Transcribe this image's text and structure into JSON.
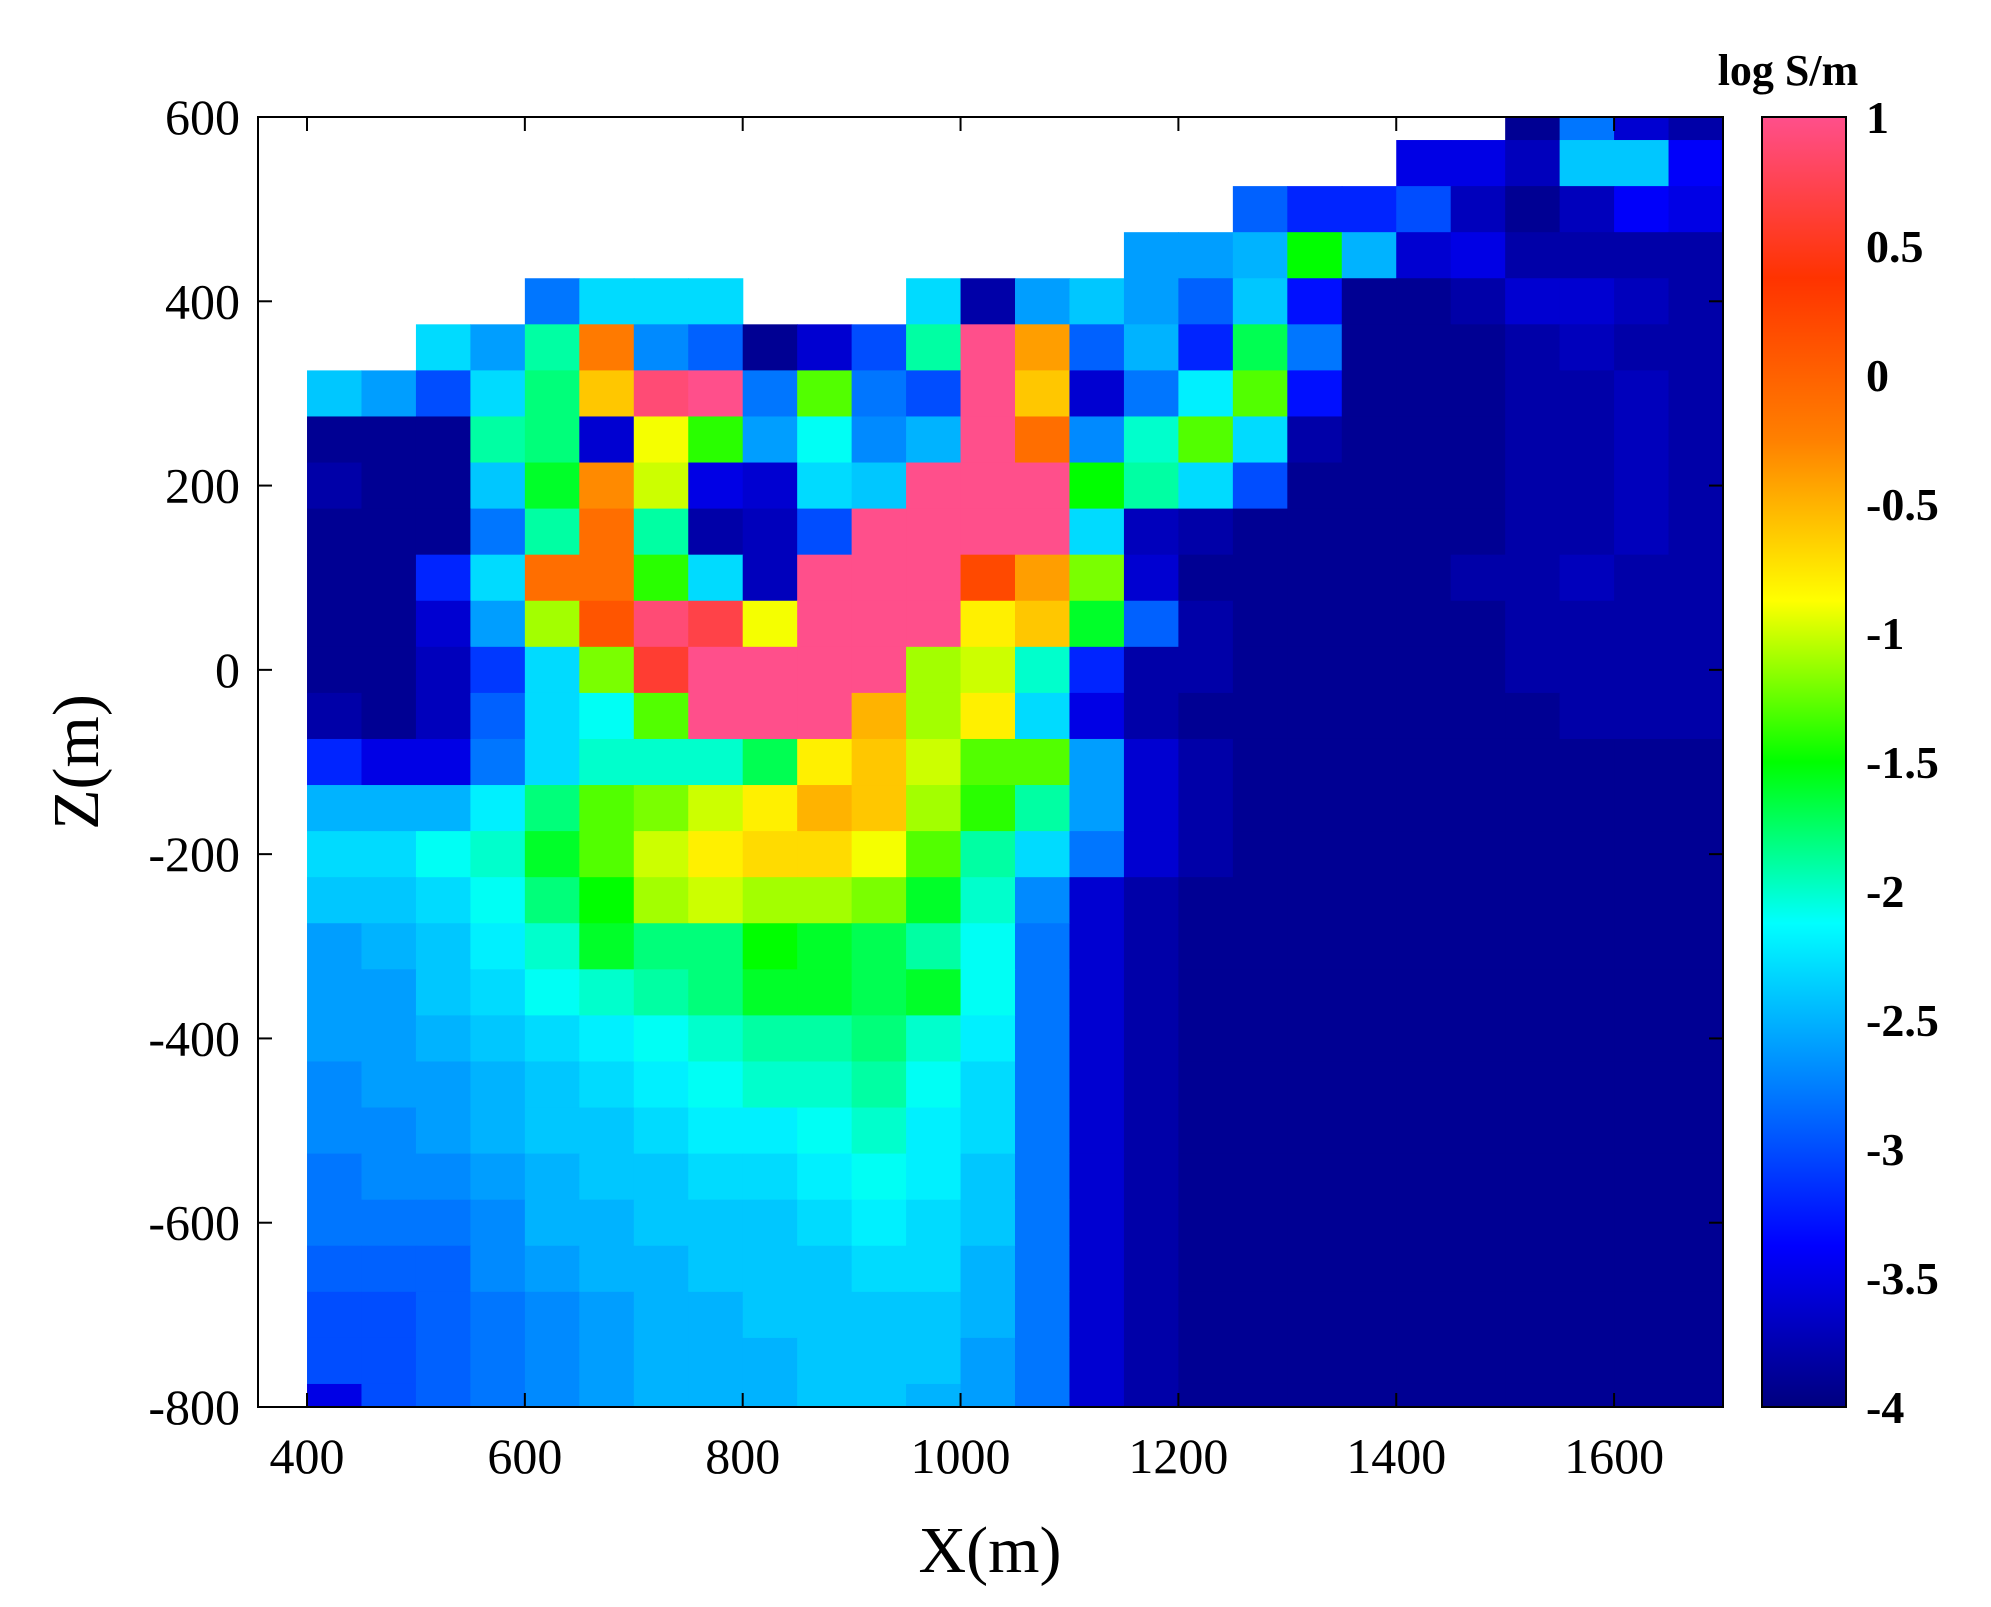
{
  "chart_data": {
    "type": "heatmap",
    "title": "",
    "xlabel": "X(m)",
    "ylabel": "Z(m)",
    "xlim": [
      355,
      1700
    ],
    "ylim": [
      -800,
      600
    ],
    "xticks": [
      400,
      600,
      800,
      1000,
      1200,
      1400,
      1600
    ],
    "yticks": [
      600,
      400,
      200,
      0,
      -200,
      -400,
      -600,
      -800
    ],
    "grid": false,
    "colorbar": {
      "title": "log S/m",
      "range": [
        -4,
        1
      ],
      "ticks": [
        "1",
        "0.5",
        "0",
        "-0.5",
        "-1",
        "-1.5",
        "-2",
        "-2.5",
        "-3",
        "-3.5",
        "-4"
      ],
      "colormap": "jet-like with pink top",
      "colors": [
        "#00007f",
        "#0000ff",
        "#0080ff",
        "#00ffff",
        "#00ff00",
        "#ffff00",
        "#ff8000",
        "#ff3300",
        "#ff4f8b"
      ]
    },
    "cell_x_edges": [
      400,
      450,
      500,
      550,
      600,
      650,
      700,
      750,
      800,
      850,
      900,
      950,
      1000,
      1050,
      1100,
      1150,
      1200,
      1250,
      1300,
      1350,
      1400,
      1450,
      1500,
      1550,
      1600,
      1650,
      1700
    ],
    "cell_z_edges": [
      600,
      575,
      525,
      475,
      425,
      375,
      325,
      275,
      225,
      175,
      125,
      75,
      25,
      -25,
      -75,
      -125,
      -175,
      -225,
      -275,
      -325,
      -375,
      -425,
      -475,
      -525,
      -575,
      -625,
      -675,
      -725,
      -775,
      -800
    ],
    "values_log_conductivity": [
      [
        null,
        null,
        null,
        null,
        null,
        null,
        null,
        null,
        null,
        null,
        null,
        null,
        null,
        null,
        null,
        null,
        null,
        null,
        null,
        null,
        null,
        null,
        -3.9,
        -2.8,
        -3.6,
        -3.8
      ],
      [
        null,
        null,
        null,
        null,
        null,
        null,
        null,
        null,
        null,
        null,
        null,
        null,
        null,
        null,
        null,
        null,
        null,
        null,
        null,
        null,
        -3.5,
        -3.5,
        -3.7,
        -2.4,
        -2.4,
        -3.4
      ],
      [
        null,
        null,
        null,
        null,
        null,
        null,
        null,
        null,
        null,
        null,
        null,
        null,
        null,
        null,
        null,
        null,
        null,
        -2.9,
        -3.2,
        -3.2,
        -3.0,
        -3.7,
        -3.9,
        -3.7,
        -3.4,
        -3.5
      ],
      [
        null,
        null,
        null,
        null,
        null,
        null,
        null,
        null,
        null,
        null,
        null,
        null,
        null,
        null,
        null,
        -2.6,
        -2.6,
        -2.5,
        -1.5,
        -2.5,
        -3.6,
        -3.5,
        -3.8,
        -3.8,
        -3.8,
        -3.8
      ],
      [
        null,
        null,
        null,
        null,
        -2.8,
        -2.3,
        -2.3,
        -2.3,
        null,
        null,
        null,
        -2.3,
        -3.8,
        -2.6,
        -2.4,
        -2.6,
        -2.9,
        -2.4,
        -3.3,
        -3.9,
        -3.9,
        -3.8,
        -3.6,
        -3.6,
        -3.7,
        -3.8
      ],
      [
        null,
        null,
        -2.3,
        -2.6,
        -1.9,
        -0.2,
        -2.7,
        -2.9,
        -3.9,
        -3.6,
        -3.0,
        -1.9,
        1.0,
        -0.4,
        -2.9,
        -2.5,
        -3.2,
        -1.7,
        -2.8,
        -3.9,
        -3.9,
        -3.9,
        -3.8,
        -3.7,
        -3.8,
        -3.8
      ],
      [
        -2.4,
        -2.6,
        -3.0,
        -2.3,
        -1.8,
        -0.6,
        0.9,
        1.0,
        -2.8,
        -1.3,
        -2.8,
        -3.0,
        1.0,
        -0.6,
        -3.6,
        -2.8,
        -2.2,
        -1.3,
        -3.3,
        -3.9,
        -3.9,
        -3.9,
        -3.8,
        -3.8,
        -3.7,
        -3.8
      ],
      [
        -3.9,
        -3.9,
        -3.9,
        -1.9,
        -1.8,
        -3.6,
        -0.9,
        -1.4,
        -2.6,
        -2.1,
        -2.7,
        -2.5,
        1.0,
        -0.1,
        -2.7,
        -2.0,
        -1.3,
        -2.3,
        -3.8,
        -3.9,
        -3.9,
        -3.9,
        -3.8,
        -3.8,
        -3.7,
        -3.8
      ],
      [
        -3.8,
        -3.9,
        -3.9,
        -2.4,
        -1.6,
        -0.3,
        -1.0,
        -3.5,
        -3.6,
        -2.3,
        -2.4,
        1.0,
        1.0,
        1.0,
        -1.5,
        -1.9,
        -2.3,
        -3.0,
        -3.9,
        -3.9,
        -3.9,
        -3.9,
        -3.8,
        -3.8,
        -3.7,
        -3.8
      ],
      [
        -3.9,
        -3.9,
        -3.9,
        -2.8,
        -1.9,
        -0.1,
        -1.9,
        -3.8,
        -3.7,
        -3.0,
        1.0,
        1.0,
        1.0,
        1.0,
        -2.3,
        -3.7,
        -3.8,
        -3.9,
        -3.9,
        -3.9,
        -3.9,
        -3.9,
        -3.8,
        -3.8,
        -3.7,
        -3.8
      ],
      [
        -3.9,
        -3.9,
        -3.2,
        -2.3,
        -0.1,
        -0.1,
        -1.4,
        -2.3,
        -3.7,
        1.0,
        1.0,
        1.0,
        0.2,
        -0.4,
        -1.2,
        -3.6,
        -3.9,
        -3.9,
        -3.9,
        -3.9,
        -3.9,
        -3.8,
        -3.8,
        -3.7,
        -3.8,
        -3.8
      ],
      [
        -3.9,
        -3.9,
        -3.6,
        -2.6,
        -1.1,
        0.1,
        0.9,
        0.7,
        -0.9,
        1.0,
        1.0,
        1.0,
        -0.8,
        -0.6,
        -1.6,
        -2.9,
        -3.8,
        -3.9,
        -3.9,
        -3.9,
        -3.9,
        -3.9,
        -3.8,
        -3.8,
        -3.8,
        -3.8
      ],
      [
        -3.9,
        -3.9,
        -3.7,
        -3.1,
        -2.3,
        -1.2,
        0.6,
        1.0,
        1.0,
        1.0,
        1.0,
        -1.1,
        -1.0,
        -2.0,
        -3.2,
        -3.8,
        -3.8,
        -3.9,
        -3.9,
        -3.9,
        -3.9,
        -3.9,
        -3.8,
        -3.8,
        -3.8,
        -3.8
      ],
      [
        -3.8,
        -3.9,
        -3.7,
        -2.9,
        -2.3,
        -2.1,
        -1.3,
        1.0,
        1.0,
        1.0,
        -0.5,
        -1.1,
        -0.8,
        -2.3,
        -3.5,
        -3.8,
        -3.9,
        -3.9,
        -3.9,
        -3.9,
        -3.9,
        -3.9,
        -3.9,
        -3.8,
        -3.8,
        -3.8
      ],
      [
        -3.2,
        -3.5,
        -3.5,
        -2.8,
        -2.3,
        -2.0,
        -2.0,
        -2.0,
        -1.7,
        -0.8,
        -0.6,
        -1.0,
        -1.3,
        -1.3,
        -2.6,
        -3.6,
        -3.8,
        -3.9,
        -3.9,
        -3.9,
        -3.9,
        -3.9,
        -3.9,
        -3.9,
        -3.9,
        -3.9
      ],
      [
        -2.5,
        -2.5,
        -2.5,
        -2.2,
        -1.8,
        -1.3,
        -1.2,
        -1.0,
        -0.8,
        -0.5,
        -0.6,
        -1.1,
        -1.4,
        -1.9,
        -2.6,
        -3.6,
        -3.8,
        -3.9,
        -3.9,
        -3.9,
        -3.9,
        -3.9,
        -3.9,
        -3.9,
        -3.9,
        -3.9
      ],
      [
        -2.3,
        -2.3,
        -2.1,
        -2.0,
        -1.6,
        -1.3,
        -1.0,
        -0.8,
        -0.7,
        -0.7,
        -0.9,
        -1.3,
        -1.9,
        -2.3,
        -2.8,
        -3.6,
        -3.8,
        -3.9,
        -3.9,
        -3.9,
        -3.9,
        -3.9,
        -3.9,
        -3.9,
        -3.9,
        -3.9
      ],
      [
        -2.4,
        -2.4,
        -2.3,
        -2.1,
        -1.8,
        -1.5,
        -1.1,
        -1.0,
        -1.1,
        -1.1,
        -1.2,
        -1.6,
        -2.0,
        -2.7,
        -3.6,
        -3.8,
        -3.9,
        -3.9,
        -3.9,
        -3.9,
        -3.9,
        -3.9,
        -3.9,
        -3.9,
        -3.9,
        -3.9
      ],
      [
        -2.6,
        -2.5,
        -2.4,
        -2.2,
        -2.0,
        -1.6,
        -1.8,
        -1.8,
        -1.5,
        -1.6,
        -1.7,
        -1.9,
        -2.1,
        -2.8,
        -3.6,
        -3.8,
        -3.9,
        -3.9,
        -3.9,
        -3.9,
        -3.9,
        -3.9,
        -3.9,
        -3.9,
        -3.9,
        -3.9
      ],
      [
        -2.6,
        -2.6,
        -2.4,
        -2.3,
        -2.1,
        -2.0,
        -1.9,
        -1.8,
        -1.6,
        -1.6,
        -1.7,
        -1.6,
        -2.1,
        -2.8,
        -3.6,
        -3.8,
        -3.9,
        -3.9,
        -3.9,
        -3.9,
        -3.9,
        -3.9,
        -3.9,
        -3.9,
        -3.9,
        -3.9
      ],
      [
        -2.6,
        -2.6,
        -2.5,
        -2.4,
        -2.3,
        -2.2,
        -2.1,
        -2.0,
        -1.9,
        -1.9,
        -1.8,
        -2.0,
        -2.2,
        -2.8,
        -3.6,
        -3.8,
        -3.9,
        -3.9,
        -3.9,
        -3.9,
        -3.9,
        -3.9,
        -3.9,
        -3.9,
        -3.9,
        -3.9
      ],
      [
        -2.7,
        -2.6,
        -2.6,
        -2.5,
        -2.4,
        -2.3,
        -2.2,
        -2.1,
        -2.0,
        -2.0,
        -1.9,
        -2.1,
        -2.3,
        -2.8,
        -3.6,
        -3.8,
        -3.9,
        -3.9,
        -3.9,
        -3.9,
        -3.9,
        -3.9,
        -3.9,
        -3.9,
        -3.9,
        -3.9
      ],
      [
        -2.7,
        -2.7,
        -2.6,
        -2.5,
        -2.4,
        -2.4,
        -2.3,
        -2.2,
        -2.2,
        -2.1,
        -2.0,
        -2.2,
        -2.3,
        -2.8,
        -3.6,
        -3.8,
        -3.9,
        -3.9,
        -3.9,
        -3.9,
        -3.9,
        -3.9,
        -3.9,
        -3.9,
        -3.9,
        -3.9
      ],
      [
        -2.8,
        -2.7,
        -2.7,
        -2.6,
        -2.5,
        -2.4,
        -2.4,
        -2.3,
        -2.3,
        -2.2,
        -2.1,
        -2.2,
        -2.4,
        -2.8,
        -3.6,
        -3.8,
        -3.9,
        -3.9,
        -3.9,
        -3.9,
        -3.9,
        -3.9,
        -3.9,
        -3.9,
        -3.9,
        -3.9
      ],
      [
        -2.8,
        -2.8,
        -2.8,
        -2.7,
        -2.5,
        -2.5,
        -2.4,
        -2.4,
        -2.4,
        -2.3,
        -2.2,
        -2.3,
        -2.4,
        -2.8,
        -3.6,
        -3.8,
        -3.9,
        -3.9,
        -3.9,
        -3.9,
        -3.9,
        -3.9,
        -3.9,
        -3.9,
        -3.9,
        -3.9
      ],
      [
        -2.9,
        -2.9,
        -2.9,
        -2.7,
        -2.6,
        -2.5,
        -2.5,
        -2.4,
        -2.4,
        -2.4,
        -2.3,
        -2.3,
        -2.5,
        -2.8,
        -3.6,
        -3.8,
        -3.9,
        -3.9,
        -3.9,
        -3.9,
        -3.9,
        -3.9,
        -3.9,
        -3.9,
        -3.9,
        -3.9
      ],
      [
        -3.0,
        -3.0,
        -2.9,
        -2.8,
        -2.7,
        -2.6,
        -2.5,
        -2.5,
        -2.4,
        -2.4,
        -2.4,
        -2.4,
        -2.5,
        -2.8,
        -3.6,
        -3.8,
        -3.9,
        -3.9,
        -3.9,
        -3.9,
        -3.9,
        -3.9,
        -3.9,
        -3.9,
        -3.9,
        -3.9
      ],
      [
        -3.0,
        -3.0,
        -2.9,
        -2.8,
        -2.7,
        -2.6,
        -2.5,
        -2.5,
        -2.5,
        -2.4,
        -2.4,
        -2.4,
        -2.6,
        -2.8,
        -3.6,
        -3.8,
        -3.9,
        -3.9,
        -3.9,
        -3.9,
        -3.9,
        -3.9,
        -3.9,
        -3.9,
        -3.9,
        -3.9
      ],
      [
        -3.5,
        -3.0,
        -2.9,
        -2.8,
        -2.7,
        -2.6,
        -2.5,
        -2.5,
        -2.5,
        -2.4,
        -2.4,
        -2.5,
        -2.6,
        -2.8,
        -3.6,
        -3.8,
        -3.9,
        -3.9,
        -3.9,
        -3.9,
        -3.9,
        -3.9,
        -3.9,
        -3.9,
        -3.9,
        -3.9
      ]
    ]
  }
}
